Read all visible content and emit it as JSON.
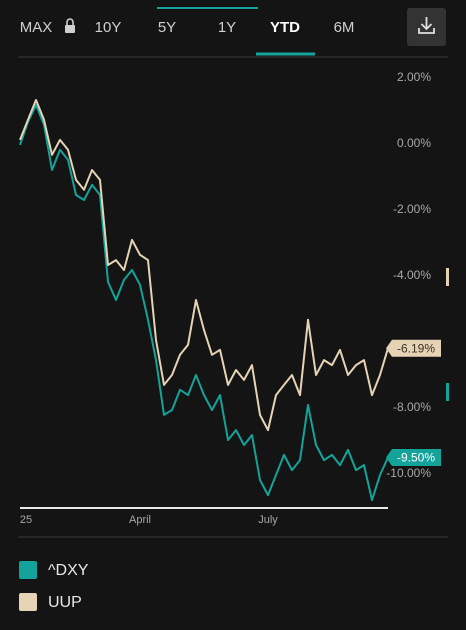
{
  "tabs": [
    "MAX",
    "10Y",
    "5Y",
    "1Y",
    "YTD",
    "6M"
  ],
  "active_tab_index": 4,
  "chart_data": {
    "type": "line",
    "categories": [
      "25",
      null,
      null,
      null,
      null,
      null,
      null,
      null,
      null,
      null,
      null,
      null,
      null,
      null,
      null,
      "April",
      null,
      null,
      null,
      null,
      null,
      null,
      null,
      null,
      null,
      null,
      null,
      null,
      null,
      null,
      null,
      "July",
      null,
      null,
      null,
      null,
      null,
      null,
      null,
      null,
      null,
      null,
      null,
      null,
      null,
      null,
      null
    ],
    "series": [
      {
        "name": "^DXY",
        "color": "#14a39a",
        "values": [
          -0.03,
          0.67,
          1.18,
          0.58,
          -0.79,
          -0.18,
          -0.48,
          -1.55,
          -1.7,
          -1.24,
          -1.55,
          -4.18,
          -4.73,
          -4.12,
          -3.82,
          -4.27,
          -5.33,
          -6.55,
          -8.21,
          -8.06,
          -7.45,
          -7.61,
          -7.0,
          -7.61,
          -8.06,
          -7.61,
          -8.97,
          -8.67,
          -9.12,
          -8.82,
          -10.18,
          -10.64,
          -10.03,
          -9.42,
          -9.88,
          -9.58,
          -7.91,
          -9.12,
          -9.58,
          -9.42,
          -9.73,
          -9.27,
          -9.88,
          -9.73,
          -10.79,
          -10.03,
          -9.5
        ],
        "value_labels": [
          null,
          null,
          null,
          null,
          null,
          null,
          null,
          null,
          null,
          null,
          null,
          null,
          null,
          null,
          null,
          null,
          null,
          null,
          null,
          null,
          null,
          null,
          null,
          null,
          null,
          null,
          null,
          null,
          null,
          null,
          null,
          null,
          null,
          null,
          null,
          null,
          null,
          null,
          null,
          null,
          null,
          null,
          null,
          null,
          null,
          null,
          "-9.50%"
        ]
      },
      {
        "name": "UUP",
        "color": "#e6d3b6",
        "values": [
          0.12,
          0.73,
          1.33,
          0.73,
          -0.33,
          0.12,
          -0.18,
          -1.09,
          -1.39,
          -0.79,
          -1.09,
          -3.67,
          -3.52,
          -3.82,
          -2.91,
          -3.36,
          -3.52,
          -5.94,
          -7.3,
          -7.0,
          -6.39,
          -6.09,
          -4.73,
          -5.64,
          -6.39,
          -6.24,
          -7.3,
          -6.85,
          -7.15,
          -6.7,
          -8.21,
          -8.67,
          -7.61,
          -7.3,
          -7.0,
          -7.61,
          -5.33,
          -7.0,
          -6.55,
          -6.7,
          -6.24,
          -7.0,
          -6.7,
          -6.55,
          -7.61,
          -7.0,
          -6.19
        ],
        "value_labels": [
          null,
          null,
          null,
          null,
          null,
          null,
          null,
          null,
          null,
          null,
          null,
          null,
          null,
          null,
          null,
          null,
          null,
          null,
          null,
          null,
          null,
          null,
          null,
          null,
          null,
          null,
          null,
          null,
          null,
          null,
          null,
          null,
          null,
          null,
          null,
          null,
          null,
          null,
          null,
          null,
          null,
          null,
          null,
          null,
          null,
          null,
          "-6.19%"
        ]
      }
    ],
    "ylim": [
      -11.09,
      2.48
    ],
    "yticks": [
      {
        "value": 2,
        "label": "2.00%"
      },
      {
        "value": 0,
        "label": "0.00%"
      },
      {
        "value": -2,
        "label": "-2.00%"
      },
      {
        "value": -4,
        "label": "-4.00%"
      },
      {
        "value": -8,
        "label": "-8.00%"
      },
      {
        "value": -10,
        "label": "-10.00%"
      }
    ],
    "grid": false
  }
}
